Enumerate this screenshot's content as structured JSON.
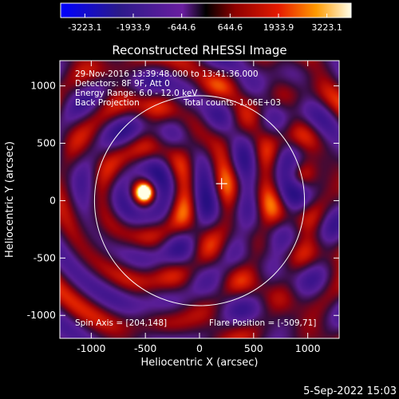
{
  "title": "Reconstructed RHESSI Image",
  "info": {
    "time_range": "29-Nov-2016 13:39:48.000 to 13:41:36.000",
    "detectors": "Detectors: 8F 9F, Att 0",
    "energy": "Energy Range: 6.0 - 12.0 keV",
    "method": "Back Projection",
    "counts": "Total counts: 1.06E+03",
    "spin_axis": "Spin Axis = [204,148]",
    "flare_position": "Flare Position = [-509,71]"
  },
  "timestamp": "5-Sep-2022 15:03",
  "colorbar": {
    "ticks": [
      "-3223.1",
      "-1933.9",
      "-644.6",
      "644.6",
      "1933.9",
      "3223.1"
    ],
    "vmin": -3223.1,
    "vmax": 3223.1
  },
  "chart_data": {
    "type": "heatmap",
    "title": "Reconstructed RHESSI Image",
    "xlabel": "Heliocentric X (arcsec)",
    "ylabel": "Heliocentric Y (arcsec)",
    "xlim": [
      -1290,
      1290
    ],
    "ylim": [
      -1200,
      1220
    ],
    "xticks": [
      {
        "value": -1000,
        "label": "-1000"
      },
      {
        "value": -500,
        "label": "-500"
      },
      {
        "value": 0,
        "label": "0"
      },
      {
        "value": 500,
        "label": "500"
      },
      {
        "value": 1000,
        "label": "1000"
      }
    ],
    "yticks": [
      {
        "value": 1000,
        "label": "1000"
      },
      {
        "value": 500,
        "label": "500"
      },
      {
        "value": 0,
        "label": "0"
      },
      {
        "value": -500,
        "label": "-500"
      },
      {
        "value": -1000,
        "label": "-1000"
      }
    ],
    "solar_limb": {
      "cx": 0,
      "cy": 0,
      "r": 970
    },
    "spin_axis": [
      204,
      148
    ],
    "flare_position": [
      -509,
      71
    ],
    "value_range": [
      -3223.1,
      3223.1
    ]
  }
}
